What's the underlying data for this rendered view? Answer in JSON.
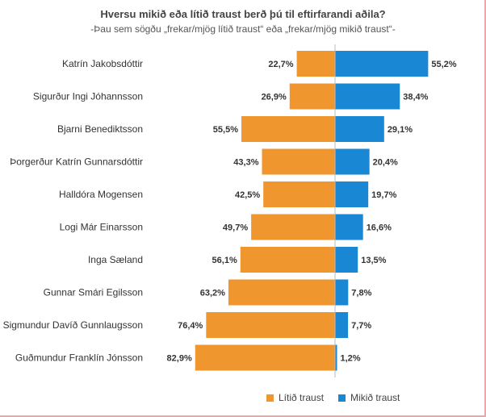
{
  "chart_data": {
    "type": "bar",
    "title": "Hversu mikið eða lítið traust berð þú til eftirfarandi aðila?",
    "subtitle": "-Þau sem sögðu „frekar/mjög lítið traust“ eða „frekar/mjög mikið traust“-",
    "categories": [
      "Katrín Jakobsdóttir",
      "Sigurður Ingi Jóhannsson",
      "Bjarni Benediktsson",
      "Þorgerður Katrín Gunnarsdóttir",
      "Halldóra Mogensen",
      "Logi Már Einarsson",
      "Inga Sæland",
      "Gunnar Smári Egilsson",
      "Sigmundur Davíð Gunnlaugsson",
      "Guðmundur Franklín Jónsson"
    ],
    "series": [
      {
        "name": "Lítið traust",
        "color": "#f0962e",
        "values": [
          22.7,
          26.9,
          55.5,
          43.3,
          42.5,
          49.7,
          56.1,
          63.2,
          76.4,
          82.9
        ],
        "labels": [
          "22,7%",
          "26,9%",
          "55,5%",
          "43,3%",
          "42,5%",
          "49,7%",
          "56,1%",
          "63,2%",
          "76,4%",
          "82,9%"
        ]
      },
      {
        "name": "Mikið traust",
        "color": "#1a87d4",
        "values": [
          55.2,
          38.4,
          29.1,
          20.4,
          19.7,
          16.6,
          13.5,
          7.8,
          7.7,
          1.2
        ],
        "labels": [
          "55,2%",
          "38,4%",
          "29,1%",
          "20,4%",
          "19,7%",
          "16,6%",
          "13,5%",
          "7,8%",
          "7,7%",
          "1,2%"
        ]
      }
    ],
    "legend_position": "bottom-right",
    "grid": false
  }
}
